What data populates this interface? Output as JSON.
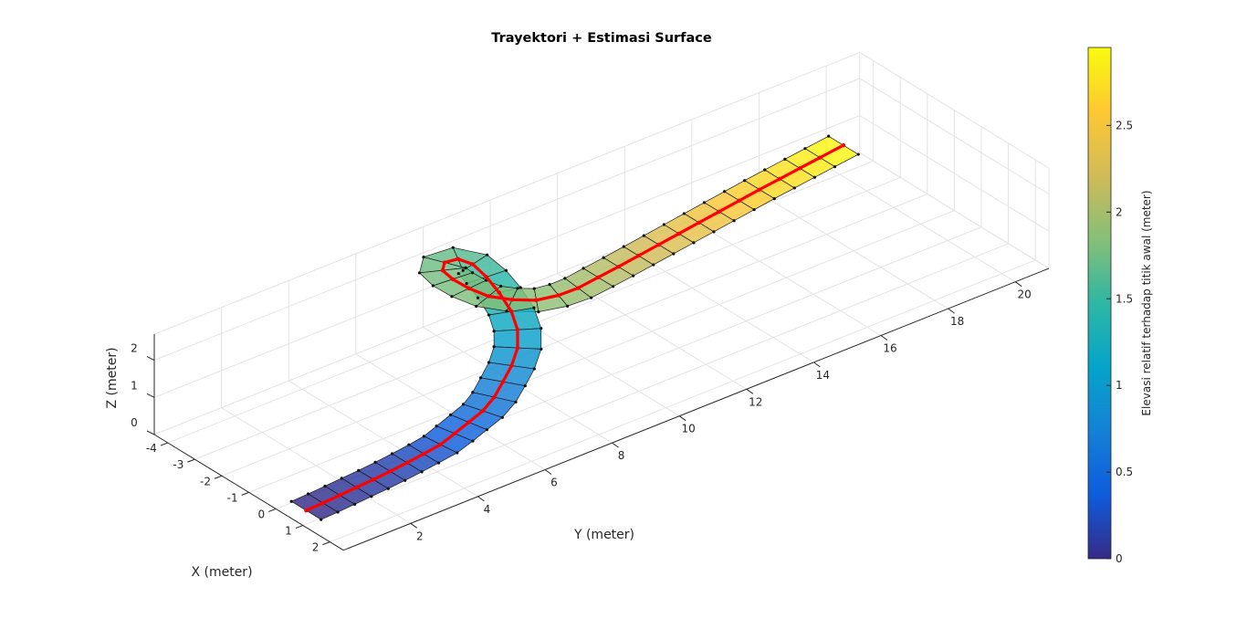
{
  "chart_data": {
    "type": "surface3d",
    "title": "Trayektori + Estimasi Surface",
    "xlabel": "X (meter)",
    "ylabel": "Y (meter)",
    "zlabel": "Z (meter)",
    "xlim": [
      -4.5,
      2.5
    ],
    "ylim": [
      0,
      21
    ],
    "zlim": [
      0,
      2.7
    ],
    "x_ticks": [
      "-4",
      "-3",
      "-2",
      "-1",
      "0",
      "1",
      "2"
    ],
    "y_ticks": [
      "2",
      "4",
      "6",
      "8",
      "10",
      "12",
      "14",
      "16",
      "18",
      "20"
    ],
    "z_ticks": [
      "0",
      "1",
      "2"
    ],
    "grid": true,
    "colormap": "parula",
    "colorbar": {
      "label": "Elevasi relatif terhadap titik awal (meter)",
      "range": [
        0,
        2.95
      ],
      "ticks": [
        "0",
        "0.5",
        "1",
        "1.5",
        "2",
        "2.5"
      ]
    },
    "trajectory": {
      "color": "#ff0000",
      "x": [
        0.5,
        0.5,
        0.5,
        0.5,
        0.5,
        0.5,
        0.5,
        0.5,
        0.5,
        0.4,
        0.3,
        0.2,
        0.0,
        -0.3,
        -0.6,
        -1.0,
        -1.5,
        -2.1,
        -2.8,
        -3.4,
        -3.9,
        -4.2,
        -4.2,
        -3.9,
        -3.4,
        -2.8,
        -2.2,
        -1.7,
        -1.3,
        -1.1,
        -1.0,
        -1.0,
        -1.0,
        -1.0,
        -1.0,
        -1.0,
        -1.0,
        -1.0,
        -1.0,
        -1.0,
        -1.0,
        -1.0,
        -1.0,
        -1.0
      ],
      "y": [
        0.5,
        1.0,
        1.5,
        2.0,
        2.5,
        3.0,
        3.5,
        4.0,
        4.5,
        5.0,
        5.5,
        6.0,
        6.5,
        7.0,
        7.5,
        8.0,
        8.4,
        8.7,
        8.9,
        9.0,
        9.0,
        8.8,
        8.4,
        8.1,
        8.0,
        8.0,
        8.1,
        8.4,
        8.8,
        9.3,
        9.8,
        10.4,
        11.0,
        11.6,
        12.2,
        12.8,
        13.4,
        14.0,
        14.6,
        15.2,
        15.8,
        16.4,
        17.0,
        17.7
      ],
      "z": [
        0.0,
        0.02,
        0.05,
        0.08,
        0.11,
        0.15,
        0.2,
        0.26,
        0.33,
        0.4,
        0.48,
        0.56,
        0.66,
        0.76,
        0.88,
        1.0,
        1.12,
        1.24,
        1.36,
        1.48,
        1.6,
        1.68,
        1.73,
        1.76,
        1.78,
        1.8,
        1.82,
        1.84,
        1.86,
        1.9,
        1.96,
        2.03,
        2.1,
        2.18,
        2.26,
        2.34,
        2.42,
        2.5,
        2.58,
        2.66,
        2.73,
        2.8,
        2.87,
        2.95
      ]
    }
  }
}
